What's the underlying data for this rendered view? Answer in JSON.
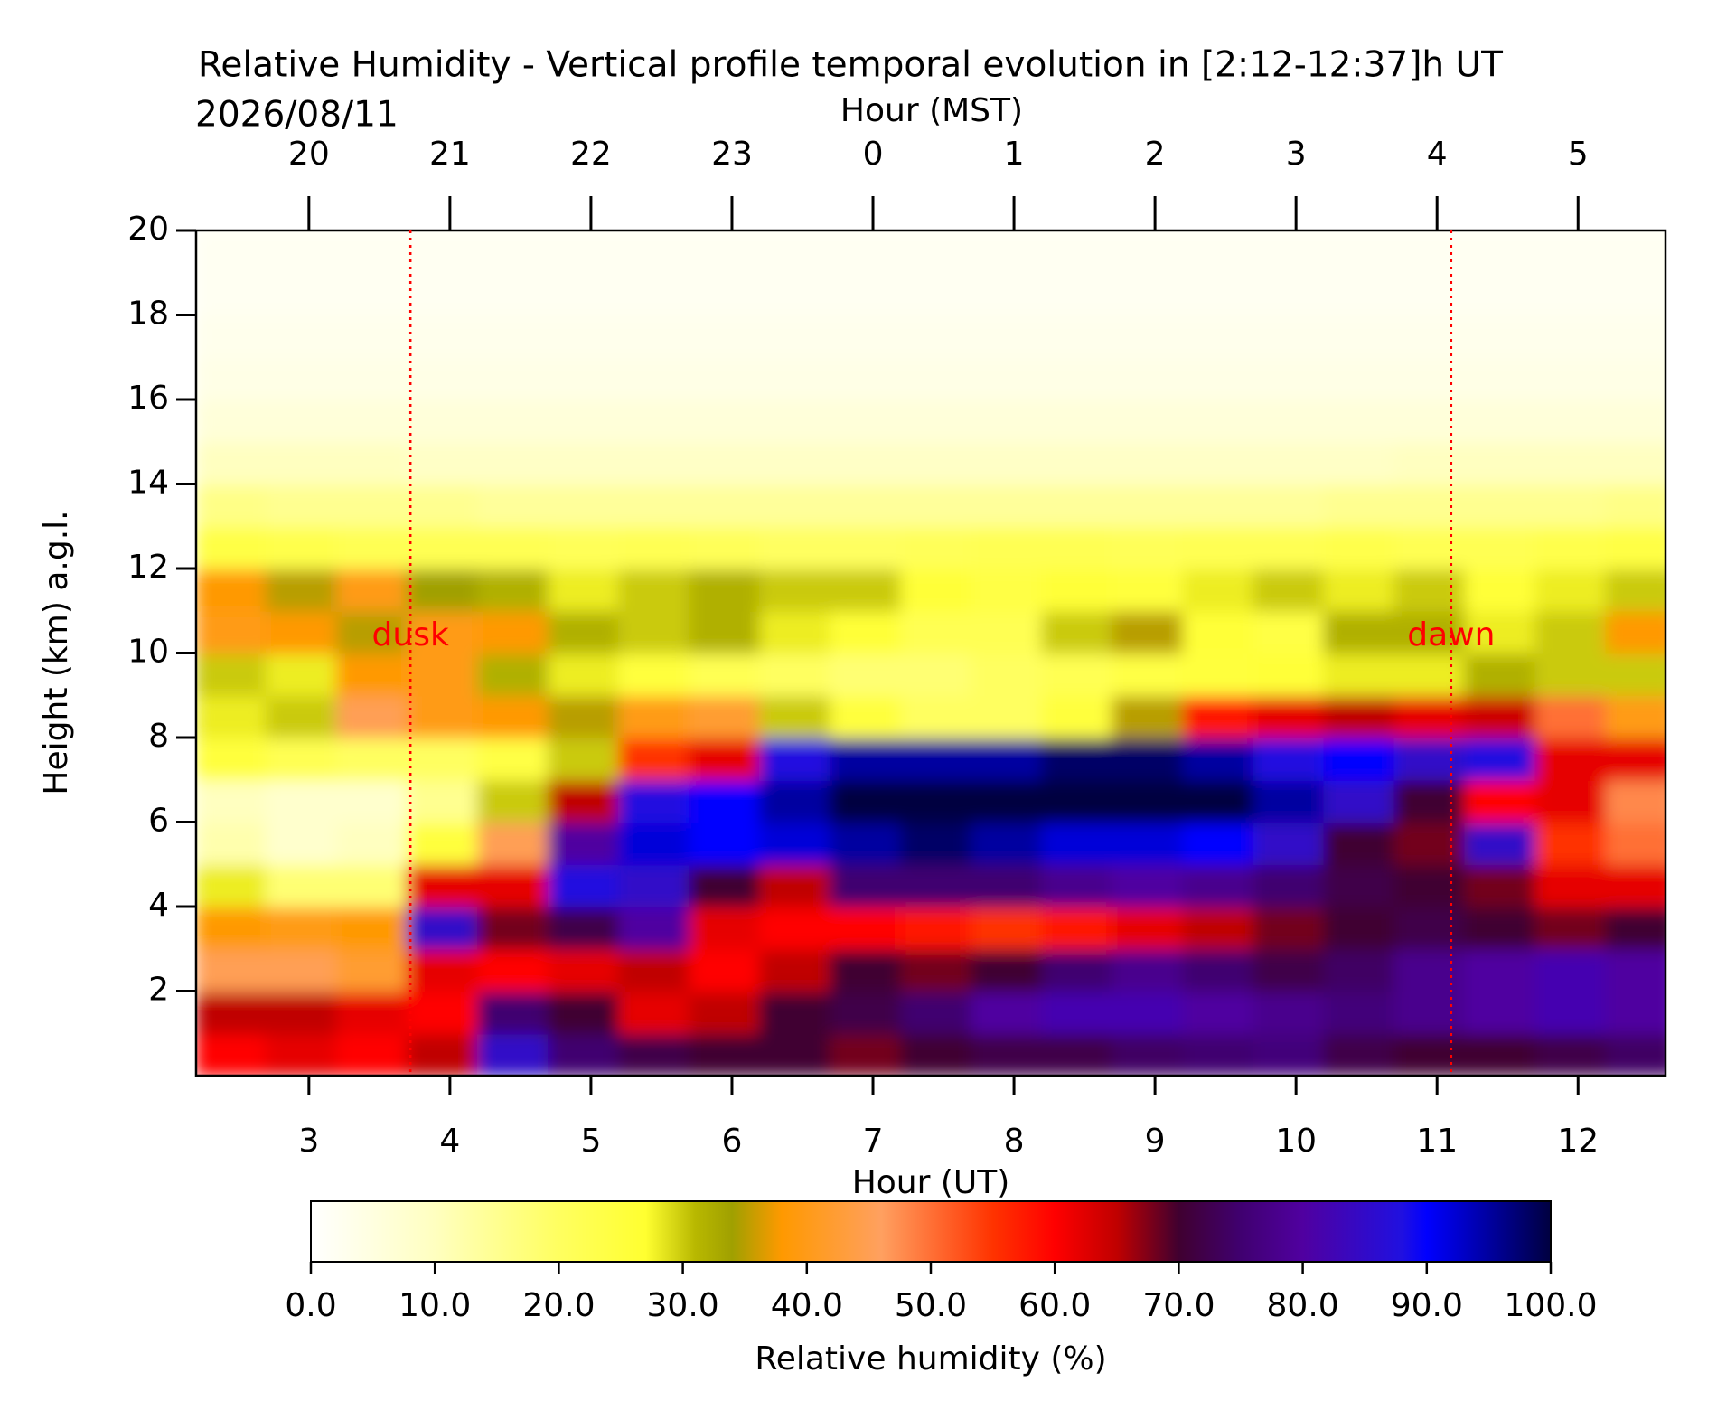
{
  "chart_data": {
    "type": "heatmap",
    "title": "Relative Humidity - Vertical profile temporal evolution in [2:12-12:37]h UT",
    "subtitle": "2026/08/11",
    "xlabel": "Hour (UT)",
    "x2label": "Hour (MST)",
    "ylabel": "Height (km) a.g.l.",
    "colorbar_label": "Relative humidity (%)",
    "xlim": [
      2.2,
      12.62
    ],
    "xticks": [
      3,
      4,
      5,
      6,
      7,
      8,
      9,
      10,
      11,
      12
    ],
    "x2ticks": [
      {
        "value": 3,
        "label": "20"
      },
      {
        "value": 4,
        "label": "21"
      },
      {
        "value": 5,
        "label": "22"
      },
      {
        "value": 6,
        "label": "23"
      },
      {
        "value": 7,
        "label": "0"
      },
      {
        "value": 8,
        "label": "1"
      },
      {
        "value": 9,
        "label": "2"
      },
      {
        "value": 10,
        "label": "3"
      },
      {
        "value": 11,
        "label": "4"
      },
      {
        "value": 12,
        "label": "5"
      }
    ],
    "ylim": [
      0,
      20
    ],
    "yticks": [
      2,
      4,
      6,
      8,
      10,
      12,
      14,
      16,
      18,
      20
    ],
    "x": [
      2.45,
      2.95,
      3.45,
      3.95,
      4.45,
      4.95,
      5.45,
      5.95,
      6.45,
      6.95,
      7.45,
      7.95,
      8.45,
      8.95,
      9.45,
      9.95,
      10.45,
      10.95,
      11.45,
      11.95,
      12.45
    ],
    "y": [
      0.5,
      1.5,
      2.5,
      3.5,
      4.5,
      5.5,
      6.5,
      7.5,
      8.5,
      9.5,
      10.5,
      11.5,
      12.5,
      13.5,
      14.5,
      15.5,
      16.5,
      17.5,
      18.5,
      19.5
    ],
    "z": [
      [
        60,
        62,
        60,
        65,
        85,
        75,
        72,
        70,
        70,
        68,
        70,
        72,
        72,
        74,
        75,
        76,
        72,
        70,
        70,
        72,
        74
      ],
      [
        65,
        65,
        62,
        60,
        75,
        70,
        62,
        65,
        70,
        72,
        75,
        80,
        82,
        82,
        80,
        78,
        76,
        78,
        80,
        82,
        80
      ],
      [
        45,
        45,
        42,
        62,
        60,
        62,
        65,
        60,
        65,
        70,
        68,
        70,
        75,
        78,
        75,
        72,
        74,
        78,
        80,
        82,
        80
      ],
      [
        38,
        40,
        38,
        85,
        68,
        72,
        80,
        62,
        60,
        60,
        58,
        55,
        58,
        62,
        65,
        68,
        70,
        72,
        70,
        68,
        70
      ],
      [
        28,
        18,
        18,
        62,
        62,
        88,
        85,
        70,
        65,
        75,
        75,
        75,
        78,
        80,
        78,
        75,
        72,
        70,
        68,
        62,
        62
      ],
      [
        12,
        8,
        10,
        25,
        45,
        80,
        92,
        90,
        92,
        95,
        98,
        95,
        92,
        92,
        90,
        85,
        70,
        68,
        85,
        55,
        50
      ],
      [
        10,
        8,
        8,
        15,
        30,
        65,
        88,
        90,
        95,
        100,
        100,
        100,
        100,
        100,
        100,
        95,
        85,
        70,
        60,
        62,
        48
      ],
      [
        25,
        22,
        20,
        20,
        24,
        30,
        55,
        62,
        88,
        95,
        95,
        95,
        98,
        98,
        95,
        88,
        90,
        85,
        88,
        62,
        62
      ],
      [
        28,
        30,
        45,
        40,
        38,
        35,
        40,
        42,
        30,
        25,
        20,
        20,
        25,
        35,
        58,
        62,
        65,
        62,
        64,
        50,
        40
      ],
      [
        30,
        28,
        38,
        40,
        32,
        28,
        25,
        22,
        20,
        18,
        18,
        20,
        22,
        24,
        25,
        26,
        28,
        28,
        32,
        30,
        30
      ],
      [
        40,
        38,
        35,
        40,
        38,
        32,
        30,
        32,
        28,
        26,
        22,
        22,
        30,
        35,
        26,
        24,
        32,
        32,
        28,
        30,
        38
      ],
      [
        38,
        35,
        40,
        34,
        32,
        28,
        30,
        32,
        30,
        30,
        26,
        24,
        26,
        25,
        28,
        30,
        28,
        30,
        26,
        28,
        30
      ],
      [
        24,
        23,
        22,
        22,
        22,
        21,
        22,
        21,
        20,
        20,
        21,
        22,
        22,
        21,
        22,
        22,
        23,
        22,
        22,
        23,
        24
      ],
      [
        16,
        15,
        15,
        15,
        14,
        14,
        14,
        14,
        14,
        14,
        14,
        14,
        14,
        14,
        14,
        14,
        15,
        15,
        15,
        15,
        16
      ],
      [
        10,
        10,
        10,
        9,
        9,
        9,
        9,
        9,
        9,
        9,
        9,
        9,
        9,
        9,
        9,
        9,
        9,
        10,
        10,
        10,
        10
      ],
      [
        6,
        6,
        6,
        6,
        6,
        6,
        6,
        6,
        6,
        6,
        6,
        6,
        6,
        6,
        6,
        6,
        6,
        6,
        6,
        6,
        6
      ],
      [
        4,
        4,
        4,
        4,
        4,
        4,
        4,
        4,
        4,
        4,
        4,
        4,
        4,
        4,
        4,
        4,
        4,
        4,
        4,
        4,
        4
      ],
      [
        3,
        3,
        3,
        3,
        3,
        3,
        3,
        3,
        3,
        3,
        3,
        3,
        3,
        3,
        3,
        3,
        3,
        3,
        3,
        3,
        3
      ],
      [
        2,
        2,
        2,
        2,
        2,
        2,
        2,
        2,
        2,
        2,
        2,
        2,
        2,
        2,
        2,
        2,
        2,
        2,
        2,
        2,
        2
      ],
      [
        2,
        2,
        2,
        2,
        2,
        2,
        2,
        2,
        2,
        2,
        2,
        2,
        2,
        2,
        2,
        2,
        2,
        2,
        2,
        2,
        2
      ]
    ],
    "clim": [
      0,
      100
    ],
    "cticks": [
      {
        "value": 0,
        "label": "0.0"
      },
      {
        "value": 10,
        "label": "10.0"
      },
      {
        "value": 20,
        "label": "20.0"
      },
      {
        "value": 30,
        "label": "30.0"
      },
      {
        "value": 40,
        "label": "40.0"
      },
      {
        "value": 50,
        "label": "50.0"
      },
      {
        "value": 60,
        "label": "60.0"
      },
      {
        "value": 70,
        "label": "70.0"
      },
      {
        "value": 80,
        "label": "80.0"
      },
      {
        "value": 90,
        "label": "90.0"
      },
      {
        "value": 100,
        "label": "100.0"
      }
    ],
    "colorscale": [
      [
        0,
        "#ffffff"
      ],
      [
        10,
        "#ffffc0"
      ],
      [
        20,
        "#ffff60"
      ],
      [
        27,
        "#ffff30"
      ],
      [
        31,
        "#b8b800"
      ],
      [
        34,
        "#a0a000"
      ],
      [
        38,
        "#ff9900"
      ],
      [
        46,
        "#ffa060"
      ],
      [
        55,
        "#ff3300"
      ],
      [
        60,
        "#ff0000"
      ],
      [
        65,
        "#c00000"
      ],
      [
        70,
        "#400030"
      ],
      [
        75,
        "#400070"
      ],
      [
        80,
        "#5000a0"
      ],
      [
        88,
        "#2010e0"
      ],
      [
        90,
        "#0000ff"
      ],
      [
        95,
        "#0000a0"
      ],
      [
        100,
        "#000040"
      ]
    ],
    "annotations": [
      {
        "x": 3.72,
        "text": "dusk",
        "color": "#ff0000"
      },
      {
        "x": 11.1,
        "text": "dawn",
        "color": "#ff0000"
      }
    ]
  }
}
